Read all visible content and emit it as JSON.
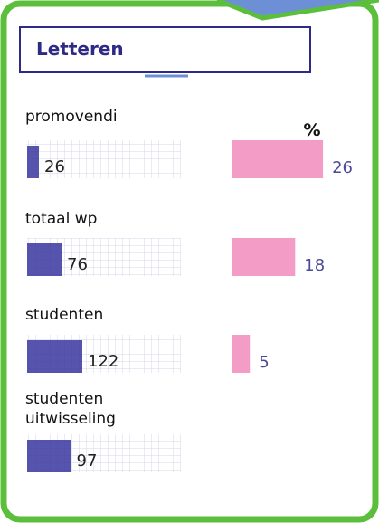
{
  "chart_data": {
    "type": "pictogram-bar",
    "title": "Letteren",
    "percent_label": "%",
    "categories": [
      "promovendi",
      "totaal wp",
      "studenten",
      "studenten uitwisseling"
    ],
    "counts": {
      "values": [
        26,
        76,
        122,
        97
      ],
      "color": "#3a36a0"
    },
    "percentages": {
      "values": [
        26,
        18,
        5,
        null
      ],
      "color": "#f29cc6"
    }
  }
}
